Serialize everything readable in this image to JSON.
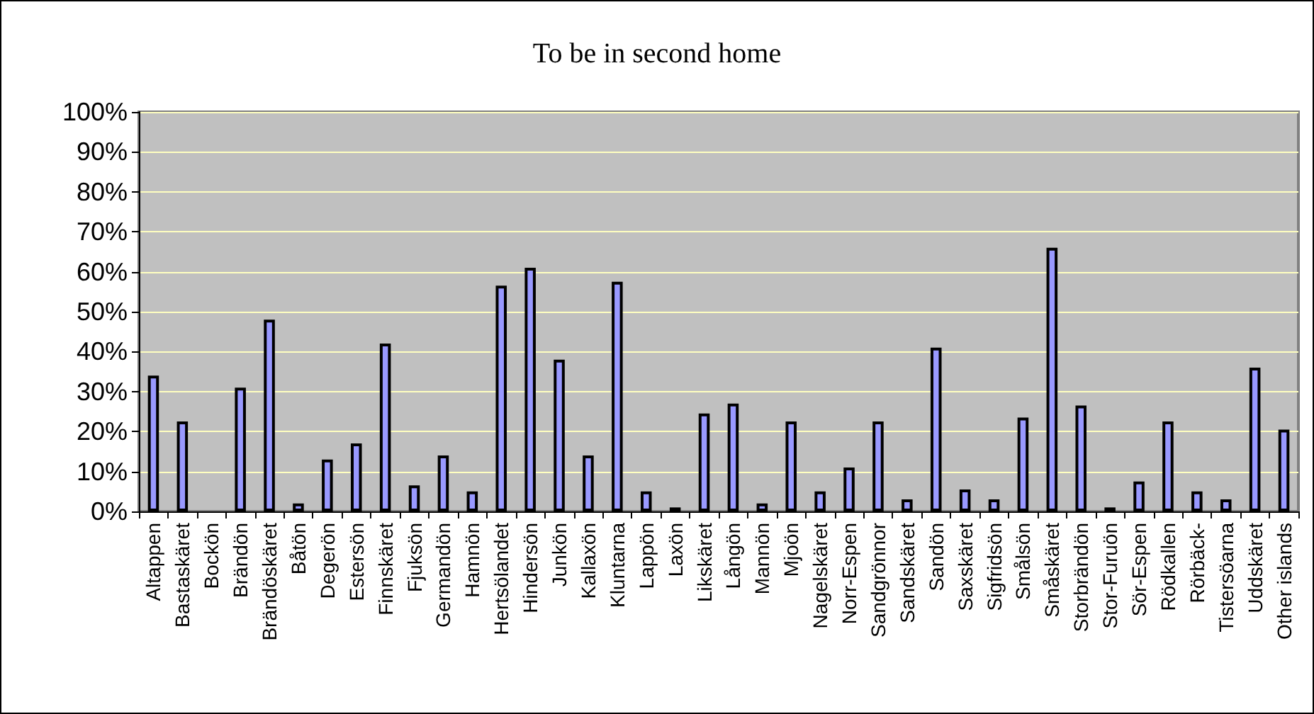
{
  "chart_data": {
    "type": "bar",
    "title": "To be in second home",
    "categories": [
      "Altappen",
      "Bastaskäret",
      "Bockön",
      "Brändön",
      "Brändöskäret",
      "Båtön",
      "Degerön",
      "Estersön",
      "Finnskäret",
      "Fjuksön",
      "Germandön",
      "Hamnön",
      "Hertsölandet",
      "Hindersön",
      "Junkön",
      "Kallaxön",
      "Kluntarna",
      "Lappön",
      "Laxön",
      "Likskäret",
      "Långön",
      "Mannön",
      "Mjoön",
      "Nagelskäret",
      "Norr-Espen",
      "Sandgrönnor",
      "Sandskäret",
      "Sandön",
      "Saxskäret",
      "Sigfridsön",
      "Smålsön",
      "Småskäret",
      "Storbrändön",
      "Stor-Furuön",
      "Sör-Espen",
      "Rödkallen",
      "Rörbäck-",
      "Tistersöarna",
      "Uddskäret",
      "Other islands"
    ],
    "values": [
      34,
      22.5,
      0,
      31,
      48,
      2,
      13,
      17,
      42,
      6.5,
      14,
      5,
      56.5,
      61,
      38,
      14,
      57.5,
      5,
      1,
      24.5,
      27,
      2,
      22.5,
      5,
      11,
      22.5,
      3,
      41,
      5.5,
      3,
      23.5,
      66,
      26.5,
      1,
      7.5,
      22.5,
      5,
      3,
      36,
      20.5
    ],
    "color": "#9999ff",
    "ylim": [
      0,
      100
    ],
    "yticks": [
      {
        "value": 0,
        "label": "0%"
      },
      {
        "value": 10,
        "label": "10%"
      },
      {
        "value": 20,
        "label": "20%"
      },
      {
        "value": 30,
        "label": "30%"
      },
      {
        "value": 40,
        "label": "40%"
      },
      {
        "value": 50,
        "label": "50%"
      },
      {
        "value": 60,
        "label": "60%"
      },
      {
        "value": 70,
        "label": "70%"
      },
      {
        "value": 80,
        "label": "80%"
      },
      {
        "value": 90,
        "label": "90%"
      },
      {
        "value": 100,
        "label": "100%"
      }
    ],
    "grid": "y"
  }
}
